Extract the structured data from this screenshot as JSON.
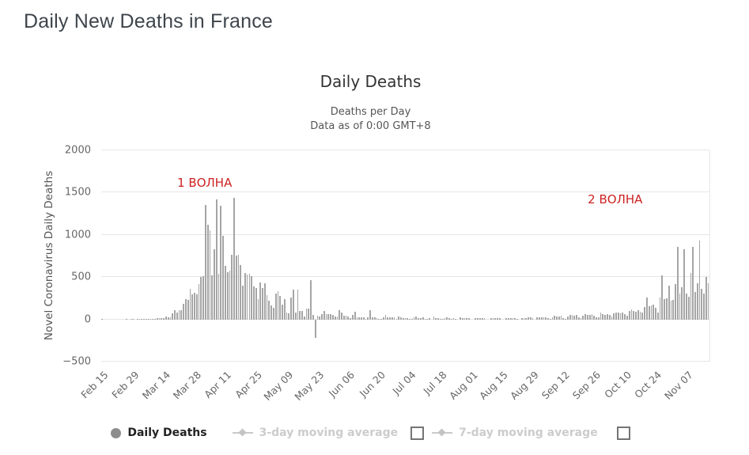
{
  "page": {
    "title": "Daily New Deaths in France"
  },
  "chart": {
    "title": "Daily Deaths",
    "subtitle_line1": "Deaths per Day",
    "subtitle_line2": "Data as of 0:00 GMT+8",
    "y_axis_title": "Novel Coronavirus Daily Deaths",
    "annotations": [
      {
        "text": "1 ВОЛНА",
        "color": "#cc2222"
      },
      {
        "text": "2 ВОЛНА",
        "color": "#cc2222"
      }
    ]
  },
  "legend": {
    "items": [
      {
        "label": "Daily Deaths",
        "marker": "circle",
        "enabled": true,
        "has_checkbox": false
      },
      {
        "label": "3-day moving average",
        "marker": "line-diamond",
        "enabled": false,
        "has_checkbox": true,
        "checked": false
      },
      {
        "label": "7-day moving average",
        "marker": "line-diamond",
        "enabled": false,
        "has_checkbox": true,
        "checked": false
      }
    ]
  },
  "colors": {
    "bar": "#a5a5a5",
    "gridline": "#e6e6e6",
    "axis_text": "#666666",
    "annotation_red": "#cc2222",
    "legend_muted": "#cccccc",
    "page_title": "#3e454c"
  },
  "chart_data": {
    "type": "bar",
    "title": "Daily Deaths",
    "series_name": "Daily Deaths",
    "ylabel": "Novel Coronavirus Daily Deaths",
    "ylim": [
      -500,
      2000
    ],
    "y_ticks": [
      -500,
      0,
      500,
      1000,
      1500,
      2000
    ],
    "grid": "horizontal",
    "legend_position": "bottom",
    "x_start_date": "Feb 15",
    "x_end_date": "Nov 17",
    "x_tick_every": 14,
    "x_tick_labels": [
      "Feb 15",
      "Feb 29",
      "Mar 14",
      "Mar 28",
      "Apr 11",
      "Apr 25",
      "May 09",
      "May 23",
      "Jun 06",
      "Jun 20",
      "Jul 04",
      "Jul 18",
      "Aug 01",
      "Aug 15",
      "Aug 29",
      "Sep 12",
      "Sep 26",
      "Oct 10",
      "Oct 24",
      "Nov 07"
    ],
    "values": [
      1,
      0,
      0,
      0,
      0,
      0,
      0,
      0,
      0,
      0,
      0,
      1,
      0,
      1,
      2,
      0,
      1,
      1,
      2,
      2,
      3,
      5,
      8,
      6,
      3,
      15,
      13,
      18,
      12,
      36,
      21,
      27,
      69,
      108,
      78,
      112,
      112,
      186,
      240,
      231,
      365,
      299,
      319,
      292,
      418,
      499,
      509,
      1355,
      1120,
      1053,
      518,
      833,
      1417,
      541,
      1341,
      987,
      635,
      561,
      574,
      762,
      1438,
      753,
      761,
      642,
      395,
      547,
      531,
      544,
      516,
      389,
      369,
      242,
      437,
      367,
      427,
      289,
      218,
      166,
      135,
      306,
      330,
      278,
      178,
      243,
      80,
      70,
      263,
      348,
      83,
      351,
      104,
      96,
      35,
      131,
      125,
      465,
      55,
      -217,
      40,
      35,
      65,
      98,
      66,
      66,
      65,
      57,
      31,
      31,
      107,
      81,
      44,
      46,
      31,
      13,
      54,
      87,
      23,
      27,
      28,
      24,
      9,
      29,
      108,
      28,
      28,
      14,
      7,
      9,
      29,
      57,
      23,
      21,
      26,
      25,
      8,
      31,
      27,
      18,
      16,
      14,
      8,
      3,
      29,
      32,
      19,
      14,
      25,
      8,
      3,
      18,
      0,
      34,
      18,
      12,
      7,
      3,
      18,
      23,
      17,
      10,
      11,
      9,
      0,
      27,
      12,
      18,
      15,
      11,
      0,
      0,
      17,
      11,
      13,
      12,
      12,
      0,
      0,
      16,
      17,
      18,
      12,
      18,
      0,
      0,
      19,
      14,
      14,
      18,
      12,
      9,
      0,
      15,
      16,
      17,
      20,
      20,
      12,
      0,
      25,
      26,
      22,
      25,
      20,
      15,
      5,
      26,
      39,
      30,
      30,
      40,
      19,
      8,
      34,
      48,
      52,
      43,
      51,
      29,
      12,
      43,
      66,
      57,
      52,
      60,
      39,
      23,
      27,
      85,
      63,
      52,
      59,
      49,
      32,
      69,
      80,
      81,
      76,
      80,
      61,
      46,
      96,
      117,
      104,
      88,
      109,
      89,
      85,
      146,
      262,
      157,
      162,
      178,
      137,
      85,
      257,
      523,
      244,
      250,
      398,
      224,
      231,
      418,
      854,
      310,
      378,
      828,
      306,
      271,
      551,
      857,
      328,
      425,
      932,
      359,
      302,
      506,
      430
    ]
  }
}
